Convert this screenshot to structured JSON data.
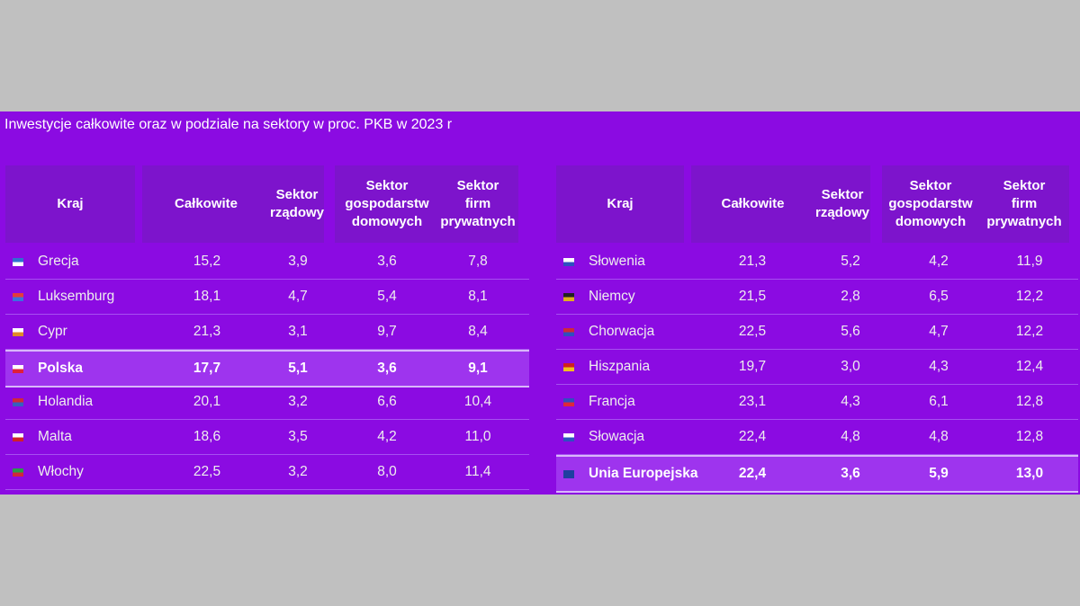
{
  "title": "Inwestycje całkowite oraz w podziale na sektory w proc. PKB w 2023 r",
  "tables": [
    {
      "header": [
        "Kraj",
        "Całkowite",
        "Sektor\nrządowy",
        "Sektor\ngospodarstw\ndomowych",
        "Sektor\nfirm\nprywatnych"
      ],
      "rows": [
        [
          "Grecja",
          "15,2",
          "3,9",
          "3,6",
          "7,8"
        ],
        [
          "Luksemburg",
          "18,1",
          "4,7",
          "5,4",
          "8,1"
        ],
        [
          "Cypr",
          "21,3",
          "3,1",
          "9,7",
          "8,4"
        ],
        [
          "Polska",
          "17,7",
          "5,1",
          "3,6",
          "9,1"
        ],
        [
          "Holandia",
          "20,1",
          "3,2",
          "6,6",
          "10,4"
        ],
        [
          "Malta",
          "18,6",
          "3,5",
          "4,2",
          "11,0"
        ],
        [
          "Włochy",
          "22,5",
          "3,2",
          "8,0",
          "11,4"
        ]
      ]
    },
    {
      "header": [
        "Kraj",
        "Całkowite",
        "Sektor\nrządowy",
        "Sektor\ngospodarstw\ndomowych",
        "Sektor\nfirm\nprywatnych"
      ],
      "rows": [
        [
          "Słowenia",
          "21,3",
          "5,2",
          "4,2",
          "11,9"
        ],
        [
          "Niemcy",
          "21,5",
          "2,8",
          "6,5",
          "12,2"
        ],
        [
          "Chorwacja",
          "22,5",
          "5,6",
          "4,7",
          "12,2"
        ],
        [
          "Hiszpania",
          "19,7",
          "3,0",
          "4,3",
          "12,4"
        ],
        [
          "Francja",
          "23,1",
          "4,3",
          "6,1",
          "12,8"
        ],
        [
          "Słowacja",
          "22,4",
          "4,8",
          "4,8",
          "12,8"
        ],
        [
          "Unia Europejska",
          "22,4",
          "3,6",
          "5,9",
          "13,0"
        ]
      ]
    }
  ]
}
